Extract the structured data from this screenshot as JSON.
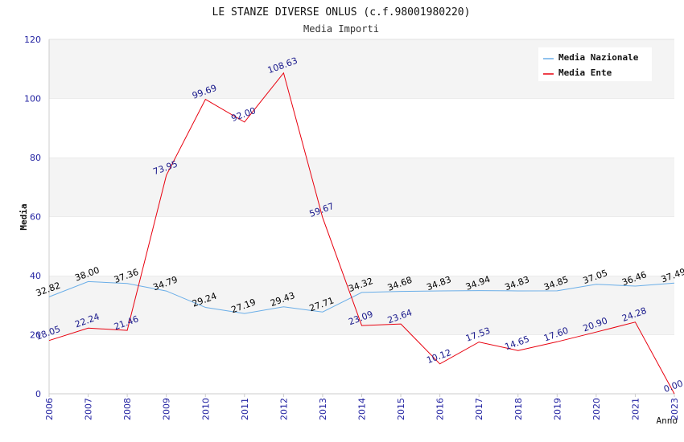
{
  "chart_data": {
    "type": "line",
    "title": "LE STANZE DIVERSE ONLUS (c.f.98001980220)",
    "subtitle": "Media Importi",
    "xlabel": "Anno",
    "ylabel": "Media",
    "ylim": [
      0,
      120
    ],
    "yticks": [
      0,
      20,
      40,
      60,
      80,
      100,
      120
    ],
    "legend_position": "top-right",
    "grid": "alternating horizontal bands",
    "categories": [
      "2006",
      "2007",
      "2008",
      "2009",
      "2010",
      "2011",
      "2012",
      "2013",
      "2014",
      "2015",
      "2016",
      "2017",
      "2018",
      "2019",
      "2020",
      "2021",
      "2023"
    ],
    "series": [
      {
        "name": "Media Nazionale",
        "color": "#6aaee8",
        "label_color": "#000000",
        "values": [
          32.82,
          38.0,
          37.36,
          34.79,
          29.24,
          27.19,
          29.43,
          27.71,
          34.32,
          34.68,
          34.83,
          34.94,
          34.83,
          34.85,
          37.05,
          36.46,
          37.49
        ],
        "labels": [
          "32.82",
          "38.00",
          "37.36",
          "34.79",
          "29.24",
          "27.19",
          "29.43",
          "27.71",
          "34.32",
          "34.68",
          "34.83",
          "34.94",
          "34.83",
          "34.85",
          "37.05",
          "36.46",
          "37.49"
        ]
      },
      {
        "name": "Media Ente",
        "color": "#e8000e",
        "label_color": "#1a1a8c",
        "values": [
          18.05,
          22.24,
          21.46,
          73.95,
          99.69,
          92.0,
          108.63,
          59.67,
          23.09,
          23.64,
          10.12,
          17.53,
          14.65,
          17.6,
          20.9,
          24.28,
          0.0
        ],
        "labels": [
          "18.05",
          "22.24",
          "21.46",
          "73.95",
          "99.69",
          "92.00",
          "108.63",
          "59.67",
          "23.09",
          "23.64",
          "10.12",
          "17.53",
          "14.65",
          "17.60",
          "20.90",
          "24.28",
          "0.00"
        ]
      }
    ]
  }
}
